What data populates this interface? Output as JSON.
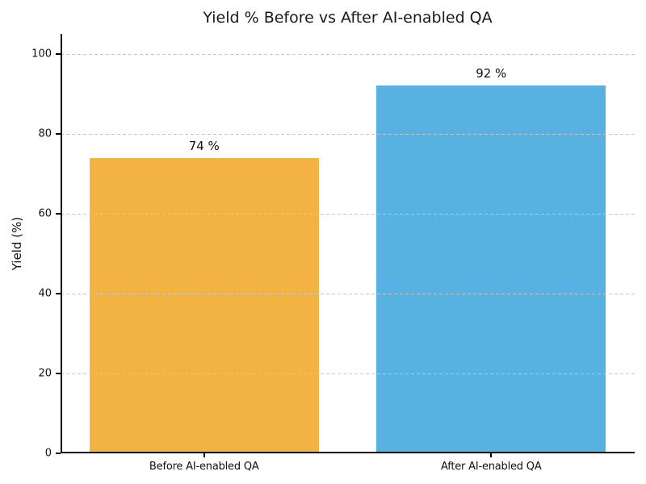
{
  "chart_data": {
    "type": "bar",
    "title": "Yield % Before vs After AI-enabled QA",
    "categories": [
      "Before AI-enabled QA",
      "After AI-enabled QA"
    ],
    "values": [
      74,
      92
    ],
    "value_labels": [
      "74 %",
      "92 %"
    ],
    "bar_colors": [
      "#F2B343",
      "#57B2E1"
    ],
    "xlabel": "",
    "ylabel": "Yield (%)",
    "ylim": [
      0,
      105
    ],
    "yticks": [
      0,
      20,
      40,
      60,
      80,
      100
    ],
    "grid": "horizontal-dashed",
    "grid_color": "#c6c6c6",
    "grid_above_bars": true,
    "legend": "none",
    "bar_width_fraction": 0.8
  }
}
